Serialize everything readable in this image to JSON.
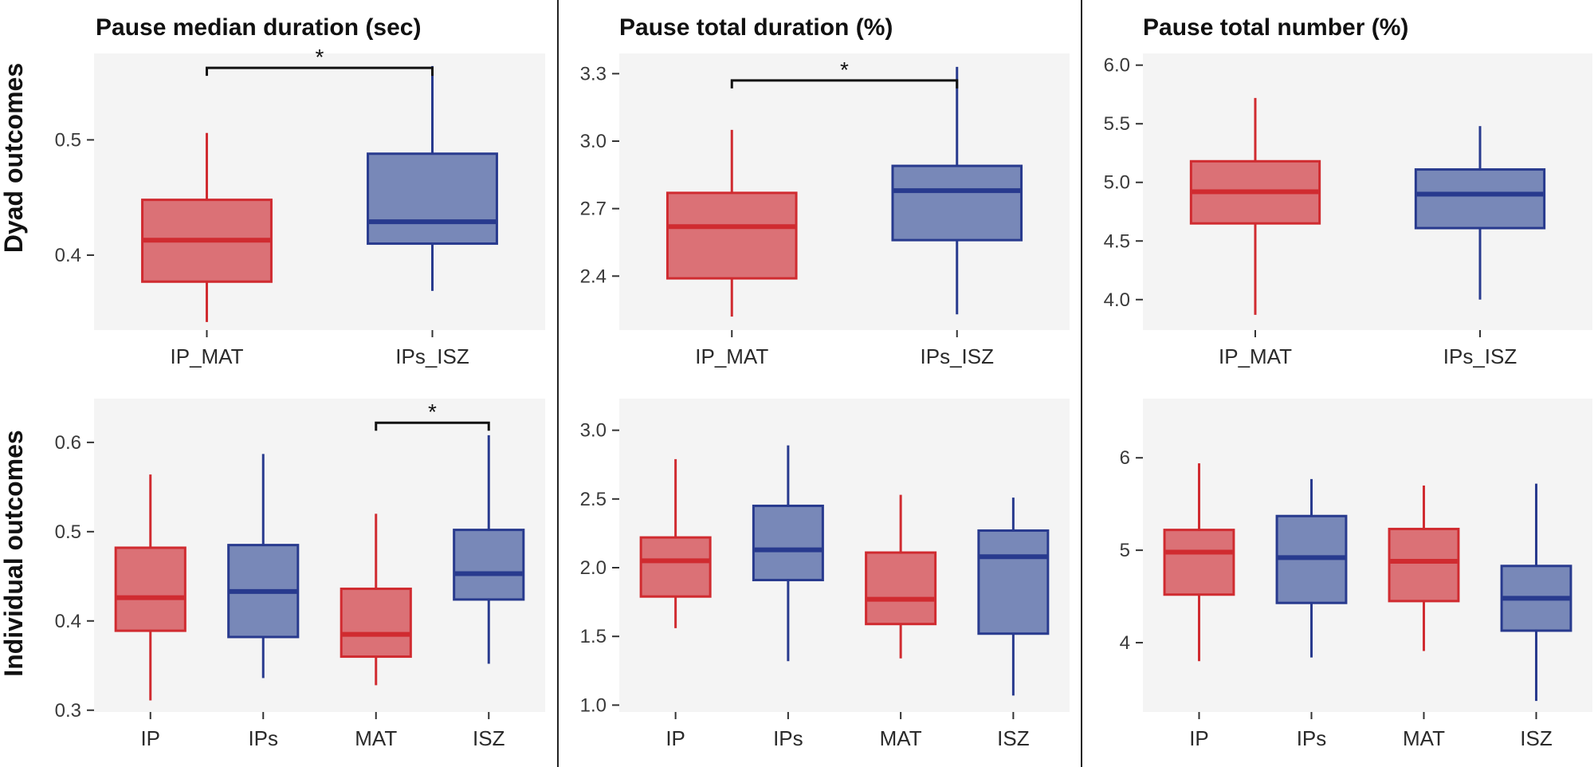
{
  "titles": {
    "col1": "Pause median duration (sec)",
    "col2": "Pause total duration (%)",
    "col3": "Pause total number (%)"
  },
  "row_labels": {
    "row1": "Dyad outcomes",
    "row2": "Individual outcomes"
  },
  "colors": {
    "panel_bg": "#f4f4f4",
    "red_fill": "#db7176",
    "red_line": "#d02b30",
    "blue_fill": "#7888b8",
    "blue_line": "#283a8e",
    "divider": "#222222"
  },
  "chart_data": [
    {
      "type": "box",
      "row": 1,
      "col": 1,
      "title": "Pause median duration (sec)",
      "ylabel": "Dyad outcomes",
      "ylim": [
        0.335,
        0.575
      ],
      "yticks": [
        0.4,
        0.5
      ],
      "ytick_labels": [
        "0.4",
        "0.5"
      ],
      "categories": [
        "IP_MAT",
        "IPs_ISZ"
      ],
      "boxes": [
        {
          "category": "IP_MAT",
          "group": "red",
          "min": 0.342,
          "q1": 0.377,
          "median": 0.413,
          "q3": 0.448,
          "max": 0.506
        },
        {
          "category": "IPs_ISZ",
          "group": "blue",
          "min": 0.369,
          "q1": 0.41,
          "median": 0.429,
          "q3": 0.488,
          "max": 0.564
        }
      ],
      "significance": [
        {
          "from": 0,
          "to": 1,
          "label": "*",
          "y": 0.5625
        }
      ]
    },
    {
      "type": "box",
      "row": 1,
      "col": 2,
      "title": "Pause total duration (%)",
      "ylabel": "",
      "ylim": [
        2.16,
        3.39
      ],
      "yticks": [
        2.4,
        2.7,
        3.0,
        3.3
      ],
      "ytick_labels": [
        "2.4",
        "2.7",
        "3.0",
        "3.3"
      ],
      "categories": [
        "IP_MAT",
        "IPs_ISZ"
      ],
      "boxes": [
        {
          "category": "IP_MAT",
          "group": "red",
          "min": 2.22,
          "q1": 2.39,
          "median": 2.62,
          "q3": 2.77,
          "max": 3.05
        },
        {
          "category": "IPs_ISZ",
          "group": "blue",
          "min": 2.23,
          "q1": 2.56,
          "median": 2.78,
          "q3": 2.89,
          "max": 3.33
        }
      ],
      "significance": [
        {
          "from": 0,
          "to": 1,
          "label": "*",
          "y": 3.27
        }
      ]
    },
    {
      "type": "box",
      "row": 1,
      "col": 3,
      "title": "Pause total number (%)",
      "ylabel": "",
      "ylim": [
        3.74,
        6.1
      ],
      "yticks": [
        4.0,
        4.5,
        5.0,
        5.5,
        6.0
      ],
      "ytick_labels": [
        "4.0",
        "4.5",
        "5.0",
        "5.5",
        "6.0"
      ],
      "categories": [
        "IP_MAT",
        "IPs_ISZ"
      ],
      "boxes": [
        {
          "category": "IP_MAT",
          "group": "red",
          "min": 3.87,
          "q1": 4.65,
          "median": 4.92,
          "q3": 5.18,
          "max": 5.72
        },
        {
          "category": "IPs_ISZ",
          "group": "blue",
          "min": 4.0,
          "q1": 4.61,
          "median": 4.9,
          "q3": 5.11,
          "max": 5.48
        }
      ],
      "significance": []
    },
    {
      "type": "box",
      "row": 2,
      "col": 1,
      "title": "",
      "ylabel": "Individual outcomes",
      "ylim": [
        0.298,
        0.649
      ],
      "yticks": [
        0.3,
        0.4,
        0.5,
        0.6
      ],
      "ytick_labels": [
        "0.3",
        "0.4",
        "0.5",
        "0.6"
      ],
      "categories": [
        "IP",
        "IPs",
        "MAT",
        "ISZ"
      ],
      "boxes": [
        {
          "category": "IP",
          "group": "red",
          "min": 0.311,
          "q1": 0.389,
          "median": 0.426,
          "q3": 0.482,
          "max": 0.564
        },
        {
          "category": "IPs",
          "group": "blue",
          "min": 0.336,
          "q1": 0.382,
          "median": 0.433,
          "q3": 0.485,
          "max": 0.587
        },
        {
          "category": "MAT",
          "group": "red",
          "min": 0.328,
          "q1": 0.36,
          "median": 0.385,
          "q3": 0.436,
          "max": 0.52
        },
        {
          "category": "ISZ",
          "group": "blue",
          "min": 0.352,
          "q1": 0.424,
          "median": 0.453,
          "q3": 0.502,
          "max": 0.608
        }
      ],
      "significance": [
        {
          "from": 2,
          "to": 3,
          "label": "*",
          "y": 0.622
        }
      ]
    },
    {
      "type": "box",
      "row": 2,
      "col": 2,
      "title": "",
      "ylabel": "",
      "ylim": [
        0.95,
        3.23
      ],
      "yticks": [
        1.0,
        1.5,
        2.0,
        2.5,
        3.0
      ],
      "ytick_labels": [
        "1.0",
        "1.5",
        "2.0",
        "2.5",
        "3.0"
      ],
      "categories": [
        "IP",
        "IPs",
        "MAT",
        "ISZ"
      ],
      "boxes": [
        {
          "category": "IP",
          "group": "red",
          "min": 1.56,
          "q1": 1.79,
          "median": 2.05,
          "q3": 2.22,
          "max": 2.79
        },
        {
          "category": "IPs",
          "group": "blue",
          "min": 1.32,
          "q1": 1.91,
          "median": 2.13,
          "q3": 2.45,
          "max": 2.89
        },
        {
          "category": "MAT",
          "group": "red",
          "min": 1.34,
          "q1": 1.59,
          "median": 1.77,
          "q3": 2.11,
          "max": 2.53
        },
        {
          "category": "ISZ",
          "group": "blue",
          "min": 1.07,
          "q1": 1.52,
          "median": 2.08,
          "q3": 2.27,
          "max": 2.51
        }
      ],
      "significance": []
    },
    {
      "type": "box",
      "row": 2,
      "col": 3,
      "title": "",
      "ylabel": "",
      "ylim": [
        3.25,
        6.64
      ],
      "yticks": [
        4,
        5,
        6
      ],
      "ytick_labels": [
        "4",
        "5",
        "6"
      ],
      "categories": [
        "IP",
        "IPs",
        "MAT",
        "ISZ"
      ],
      "boxes": [
        {
          "category": "IP",
          "group": "red",
          "min": 3.8,
          "q1": 4.52,
          "median": 4.98,
          "q3": 5.22,
          "max": 5.94
        },
        {
          "category": "IPs",
          "group": "blue",
          "min": 3.84,
          "q1": 4.43,
          "median": 4.92,
          "q3": 5.37,
          "max": 5.77
        },
        {
          "category": "MAT",
          "group": "red",
          "min": 3.91,
          "q1": 4.45,
          "median": 4.88,
          "q3": 5.23,
          "max": 5.7
        },
        {
          "category": "ISZ",
          "group": "blue",
          "min": 3.37,
          "q1": 4.13,
          "median": 4.48,
          "q3": 4.83,
          "max": 5.72
        }
      ],
      "significance": []
    }
  ]
}
